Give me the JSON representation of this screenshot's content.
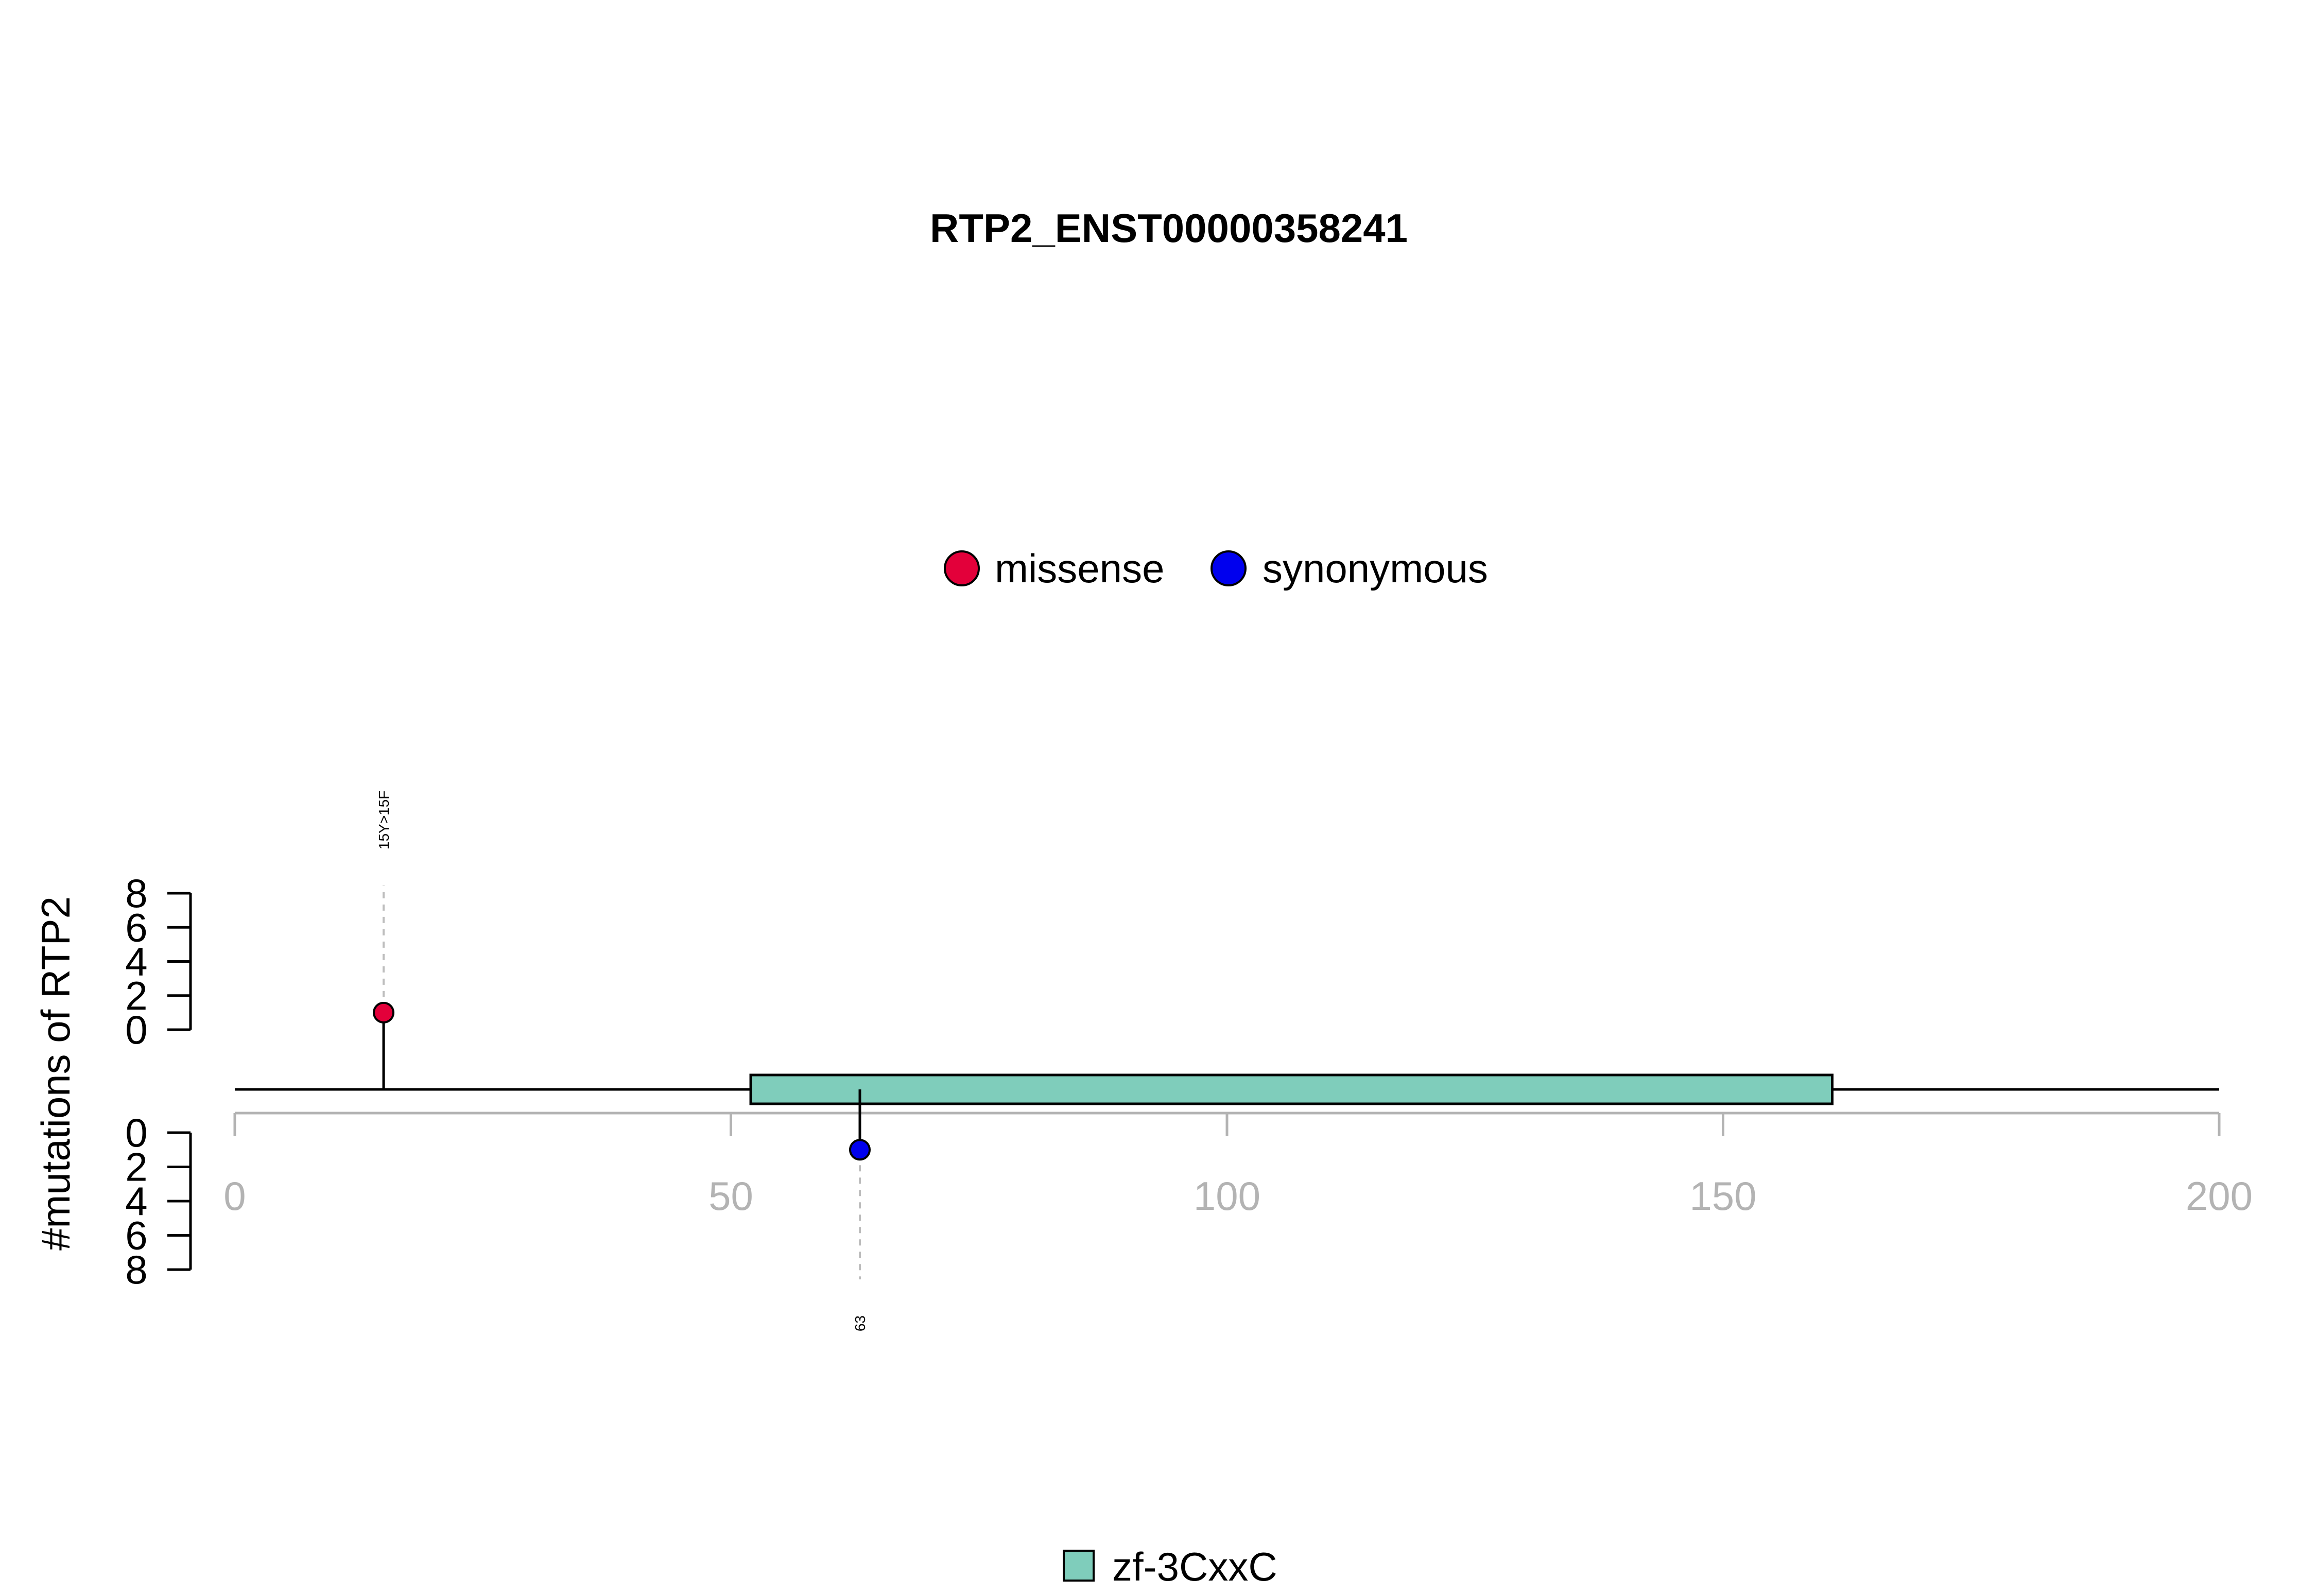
{
  "chart_data": {
    "type": "lollipop",
    "title": "RTP2_ENST00000358241",
    "ylabel": "#mutations of RTP2",
    "xlim": [
      0,
      200
    ],
    "x_ticks": [
      "0",
      "50",
      "100",
      "150",
      "200"
    ],
    "x_tick_values": [
      0,
      50,
      100,
      150,
      200
    ],
    "y_ticks": [
      "0",
      "2",
      "4",
      "6",
      "8"
    ],
    "y_tick_values": [
      0,
      2,
      4,
      6,
      8
    ],
    "ylim": [
      0,
      8
    ],
    "protein_length": 200,
    "mutation_legend": [
      {
        "name": "missense",
        "color": "#e3003a"
      },
      {
        "name": "synonymous",
        "color": "#0000ee"
      }
    ],
    "domains": [
      {
        "name": "zf-3CxxC",
        "start": 52,
        "end": 161,
        "color": "#7fcdbb"
      }
    ],
    "mutations": [
      {
        "position": 15,
        "count": 1,
        "type": "missense",
        "label": "15Y>15F",
        "track": "top",
        "color": "#e3003a"
      },
      {
        "position": 63,
        "count": 1,
        "type": "synonymous",
        "label": "63",
        "track": "bottom",
        "color": "#0000ee"
      }
    ]
  }
}
